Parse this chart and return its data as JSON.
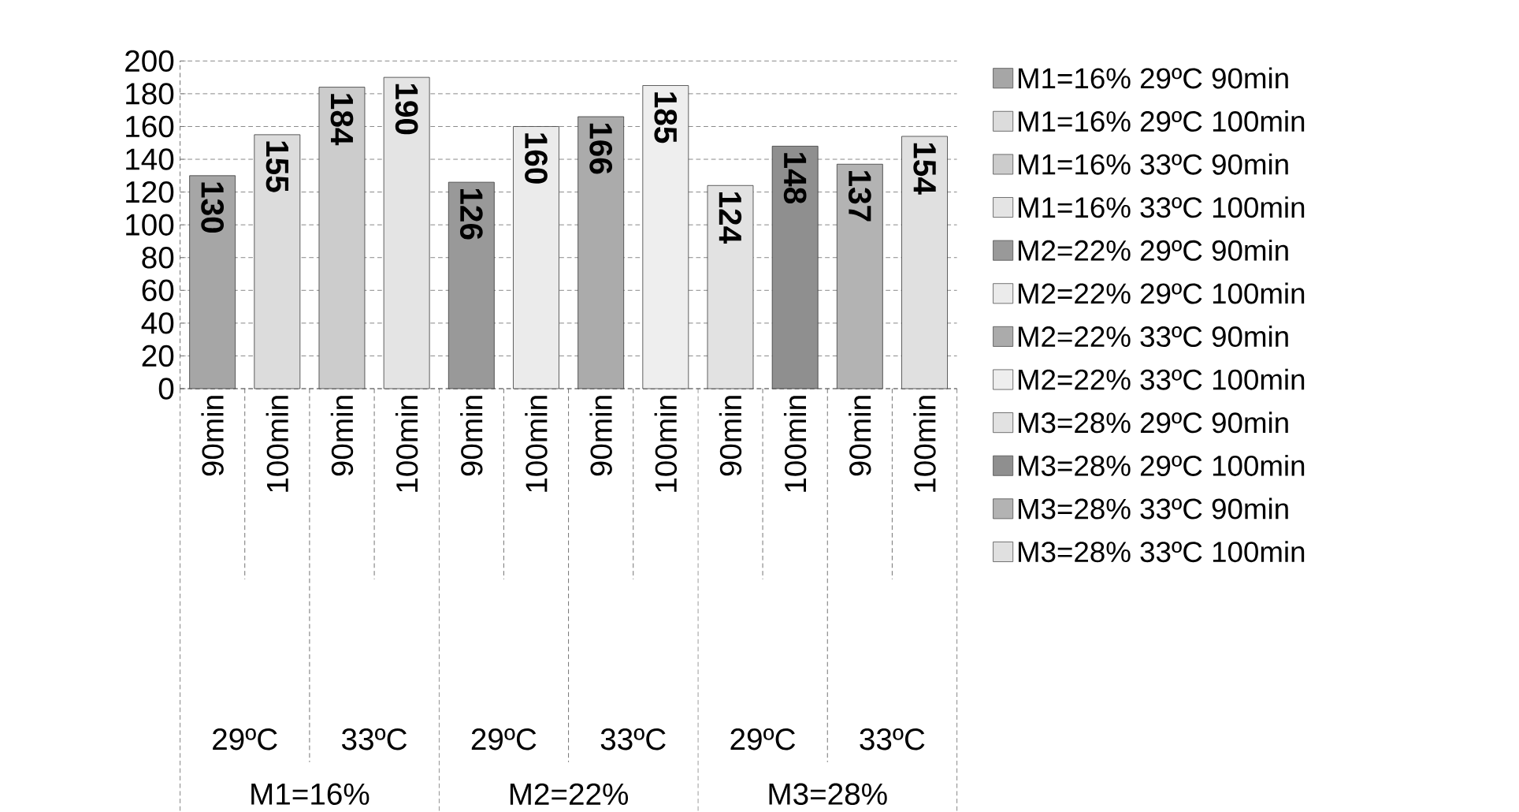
{
  "chart_data": {
    "type": "bar",
    "categories": [
      "90min",
      "100min",
      "90min",
      "100min",
      "90min",
      "100min",
      "90min",
      "100min",
      "90min",
      "100min",
      "90min",
      "100min"
    ],
    "annotations": [
      "29ºC",
      "33ºC",
      "29ºC",
      "33ºC",
      "29ºC",
      "33ºC",
      "M1=16%",
      "M2=22%",
      "M3=28%"
    ],
    "series": [
      {
        "name": "M1=16% 29ºC 90min",
        "color": "#a6a6a6",
        "values": [
          130,
          null,
          null,
          null,
          null,
          null,
          null,
          null,
          null,
          null,
          null,
          null
        ]
      },
      {
        "name": "M1=16% 29ºC 100min",
        "color": "#dcdcdc",
        "values": [
          null,
          155,
          null,
          null,
          null,
          null,
          null,
          null,
          null,
          null,
          null,
          null
        ]
      },
      {
        "name": "M1=16% 33ºC 90min",
        "color": "#cccccc",
        "values": [
          null,
          null,
          184,
          null,
          null,
          null,
          null,
          null,
          null,
          null,
          null,
          null
        ]
      },
      {
        "name": "M1=16% 33ºC 100min",
        "color": "#e4e4e4",
        "values": [
          null,
          null,
          null,
          190,
          null,
          null,
          null,
          null,
          null,
          null,
          null,
          null
        ]
      },
      {
        "name": "M2=22% 29ºC 90min",
        "color": "#999999",
        "values": [
          null,
          null,
          null,
          null,
          126,
          null,
          null,
          null,
          null,
          null,
          null,
          null
        ]
      },
      {
        "name": "M2=22% 29ºC 100min",
        "color": "#ebebeb",
        "values": [
          null,
          null,
          null,
          null,
          null,
          160,
          null,
          null,
          null,
          null,
          null,
          null
        ]
      },
      {
        "name": "M2=22% 33ºC 90min",
        "color": "#ababab",
        "values": [
          null,
          null,
          null,
          null,
          null,
          null,
          166,
          null,
          null,
          null,
          null,
          null
        ]
      },
      {
        "name": "M2=22% 33ºC 100min",
        "color": "#eeeeee",
        "values": [
          null,
          null,
          null,
          null,
          null,
          null,
          null,
          185,
          null,
          null,
          null,
          null
        ]
      },
      {
        "name": "M3=28% 29ºC 90min",
        "color": "#e2e2e2",
        "values": [
          null,
          null,
          null,
          null,
          null,
          null,
          null,
          null,
          124,
          null,
          null,
          null
        ]
      },
      {
        "name": "M3=28% 29ºC 100min",
        "color": "#8f8f8f",
        "values": [
          null,
          null,
          null,
          null,
          null,
          null,
          null,
          null,
          null,
          148,
          null,
          null
        ]
      },
      {
        "name": "M3=28% 33ºC 90min",
        "color": "#b3b3b3",
        "values": [
          null,
          null,
          null,
          null,
          null,
          null,
          null,
          null,
          null,
          null,
          137,
          null
        ]
      },
      {
        "name": "M3=28% 33ºC 100min",
        "color": "#e0e0e0",
        "values": [
          null,
          null,
          null,
          null,
          null,
          null,
          null,
          null,
          null,
          null,
          null,
          154
        ]
      }
    ],
    "ylim": [
      0,
      200
    ],
    "yticks": [
      0,
      20,
      40,
      60,
      80,
      100,
      120,
      140,
      160,
      180,
      200
    ],
    "grid": "y",
    "legend": "right",
    "data_labels": true
  }
}
